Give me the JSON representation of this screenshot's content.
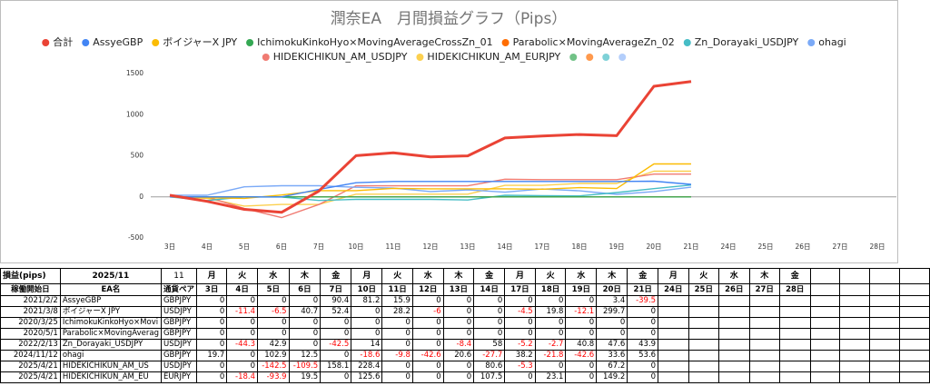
{
  "chart_data": {
    "type": "line",
    "title": "潤奈EA　月間損益グラフ（Pips）",
    "categories": [
      "3日",
      "4日",
      "5日",
      "6日",
      "7日",
      "10日",
      "11日",
      "12日",
      "13日",
      "14日",
      "17日",
      "18日",
      "19日",
      "20日",
      "21日",
      "24日",
      "25日",
      "26日",
      "27日",
      "28日"
    ],
    "ylim": [
      -500,
      1500
    ],
    "yticks": [
      -500,
      0,
      500,
      1000,
      1500
    ],
    "grid": false,
    "series": [
      {
        "name": "合計",
        "color": "#ea4335",
        "values": [
          19.7,
          -54.4,
          -151.5,
          -188.3,
          70.1,
          500.7,
          535.0,
          486.4,
          498.6,
          717.0,
          740.2,
          758.6,
          744.7,
          1345.4,
          1403.4,
          null,
          null,
          null,
          null,
          null
        ]
      },
      {
        "name": "AssyeGBP",
        "color": "#4285f4",
        "values": [
          0,
          0,
          0,
          0,
          90.4,
          171.6,
          187.5,
          187.5,
          187.5,
          187.5,
          187.5,
          187.5,
          187.5,
          190.9,
          151.4,
          null,
          null,
          null,
          null,
          null
        ]
      },
      {
        "name": "ボイジャーX JPY",
        "color": "#fbbc04",
        "values": [
          0,
          -11.4,
          -17.9,
          22.8,
          75.2,
          75.2,
          103.4,
          97.4,
          97.4,
          97.4,
          92.9,
          112.7,
          100.6,
          400.3,
          400.3,
          null,
          null,
          null,
          null,
          null
        ]
      },
      {
        "name": "IchimokuKinkoHyo×MovingAverageCrossZn_01",
        "color": "#34a853",
        "values": [
          0,
          0,
          0,
          0,
          0,
          0,
          0,
          0,
          0,
          0,
          0,
          0,
          0,
          0,
          0,
          null,
          null,
          null,
          null,
          null
        ]
      },
      {
        "name": "Parabolic×MovingAverageZn_02",
        "color": "#ff6d01",
        "values": [
          0,
          0,
          0,
          0,
          0,
          0,
          0,
          0,
          0,
          0,
          0,
          0,
          0,
          0,
          0,
          null,
          null,
          null,
          null,
          null
        ]
      },
      {
        "name": "Zn_Dorayaki_USDJPY",
        "color": "#46bdc6",
        "values": [
          0,
          -44.3,
          -1.4,
          -1.4,
          -43.9,
          -29.9,
          -29.9,
          -29.9,
          -38.3,
          19.7,
          14.5,
          11.8,
          52.6,
          100.2,
          144.1,
          null,
          null,
          null,
          null,
          null
        ]
      },
      {
        "name": "ohagi",
        "color": "#7baaf7",
        "values": [
          19.7,
          19.7,
          122.6,
          135.1,
          135.1,
          116.5,
          106.7,
          64.1,
          84.7,
          57.0,
          95.2,
          73.4,
          30.8,
          64.4,
          118.0,
          null,
          null,
          null,
          null,
          null
        ]
      },
      {
        "name": "HIDEKICHIKUN_AM_USDJPY",
        "color": "#f07b72",
        "values": [
          0,
          0,
          -142.5,
          -252.0,
          -93.9,
          134.5,
          134.5,
          134.5,
          134.5,
          215.1,
          209.8,
          209.8,
          209.8,
          277.0,
          277.0,
          null,
          null,
          null,
          null,
          null
        ]
      },
      {
        "name": "HIDEKICHIKUN_AM_EURJPY",
        "color": "#fcd04f",
        "values": [
          0,
          -18.4,
          -112.3,
          -92.8,
          -92.8,
          32.8,
          32.8,
          32.8,
          32.8,
          140.3,
          140.3,
          163.4,
          163.4,
          312.6,
          312.6,
          null,
          null,
          null,
          null,
          null
        ]
      },
      {
        "name": null,
        "color": "#71c287",
        "values": [
          null,
          null,
          null,
          null,
          null,
          null,
          null,
          null,
          null,
          null,
          null,
          null,
          null,
          null,
          null,
          null,
          null,
          null,
          null,
          null
        ]
      },
      {
        "name": null,
        "color": "#ff994d",
        "values": [
          null,
          null,
          null,
          null,
          null,
          null,
          null,
          null,
          null,
          null,
          null,
          null,
          null,
          null,
          null,
          null,
          null,
          null,
          null,
          null
        ]
      },
      {
        "name": null,
        "color": "#7ed1d7",
        "values": [
          null,
          null,
          null,
          null,
          null,
          null,
          null,
          null,
          null,
          null,
          null,
          null,
          null,
          null,
          null,
          null,
          null,
          null,
          null,
          null
        ]
      },
      {
        "name": null,
        "color": "#b3cefb",
        "values": [
          null,
          null,
          null,
          null,
          null,
          null,
          null,
          null,
          null,
          null,
          null,
          null,
          null,
          null,
          null,
          null,
          null,
          null,
          null,
          null
        ]
      }
    ]
  },
  "sheet": {
    "corner": "損益(pips)",
    "month": "2025/11",
    "month_number": 11,
    "weekdays": [
      "月",
      "火",
      "水",
      "木",
      "金",
      "月",
      "火",
      "水",
      "木",
      "金",
      "月",
      "火",
      "水",
      "木",
      "金",
      "月",
      "火",
      "水",
      "木",
      "金"
    ],
    "start_header": "稼働開始日",
    "name_header": "EA名",
    "pair_header": "通貨ペア",
    "rows": [
      {
        "start": "2021/2/2",
        "name": "AssyeGBP",
        "pair": "GBPJPY",
        "values": [
          0,
          0,
          0,
          0,
          90.4,
          81.2,
          15.9,
          0,
          0,
          0,
          0,
          0,
          0,
          3.4,
          -39.5
        ]
      },
      {
        "start": "2021/3/8",
        "name": "ボイジャーX JPY",
        "pair": "USDJPY",
        "values": [
          0,
          -11.4,
          -6.5,
          40.7,
          52.4,
          0,
          28.2,
          -6,
          0,
          0,
          -4.5,
          19.8,
          -12.1,
          299.7,
          0
        ]
      },
      {
        "start": "2020/3/25",
        "name": "IchimokuKinkoHyo×Movi",
        "pair": "GBPJPY",
        "values": [
          0,
          0,
          0,
          0,
          0,
          0,
          0,
          0,
          0,
          0,
          0,
          0,
          0,
          0,
          0
        ]
      },
      {
        "start": "2020/5/1",
        "name": "Parabolic×MovingAverag",
        "pair": "GBPJPY",
        "values": [
          0,
          0,
          0,
          0,
          0,
          0,
          0,
          0,
          0,
          0,
          0,
          0,
          0,
          0,
          0
        ]
      },
      {
        "start": "2022/2/13",
        "name": "Zn_Dorayaki_USDJPY",
        "pair": "USDJPY",
        "values": [
          0,
          -44.3,
          42.9,
          0,
          -42.5,
          14,
          0,
          0,
          -8.4,
          58,
          -5.2,
          -2.7,
          40.8,
          47.6,
          43.9
        ]
      },
      {
        "start": "2024/11/12",
        "name": "ohagi",
        "pair": "GBPJPY",
        "values": [
          19.7,
          0,
          102.9,
          12.5,
          0,
          -18.6,
          -9.8,
          -42.6,
          20.6,
          -27.7,
          38.2,
          -21.8,
          -42.6,
          33.6,
          53.6
        ]
      },
      {
        "start": "2025/4/21",
        "name": "HIDEKICHIKUN_AM_US",
        "pair": "USDJPY",
        "values": [
          0,
          0,
          -142.5,
          -109.5,
          158.1,
          228.4,
          0,
          0,
          0,
          80.6,
          -5.3,
          0,
          0,
          67.2,
          0
        ]
      },
      {
        "start": "2025/4/21",
        "name": "HIDEKICHIKUN_AM_EU",
        "pair": "EURJPY",
        "values": [
          0,
          -18.4,
          -93.9,
          19.5,
          0,
          125.6,
          0,
          0,
          0,
          107.5,
          0,
          23.1,
          0,
          149.2,
          0
        ]
      }
    ]
  }
}
